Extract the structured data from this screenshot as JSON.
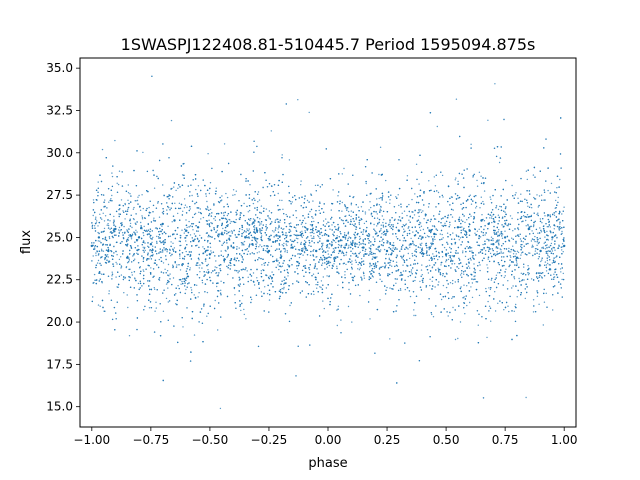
{
  "chart_data": {
    "type": "scatter",
    "title": "1SWASPJ122408.81-510445.7 Period 1595094.875s",
    "xlabel": "phase",
    "ylabel": "flux",
    "xlim": [
      -1.05,
      1.05
    ],
    "ylim": [
      13.8,
      35.6
    ],
    "x_ticks": [
      -1.0,
      -0.75,
      -0.5,
      -0.25,
      0.0,
      0.25,
      0.5,
      0.75,
      1.0
    ],
    "x_tick_labels": [
      "−1.00",
      "−0.75",
      "−0.50",
      "−0.25",
      "0.00",
      "0.25",
      "0.50",
      "0.75",
      "1.00"
    ],
    "y_ticks": [
      15.0,
      17.5,
      20.0,
      22.5,
      25.0,
      27.5,
      30.0,
      32.5,
      35.0
    ],
    "y_tick_labels": [
      "15.0",
      "17.5",
      "20.0",
      "22.5",
      "25.0",
      "27.5",
      "30.0",
      "32.5",
      "35.0"
    ],
    "grid": false,
    "legend": "none",
    "point_color": "#1f77b4",
    "series": [
      {
        "phase_range": [
          -1.0,
          1.0
        ],
        "flux_median": 24.6,
        "flux_core_band": [
          22.0,
          27.5
        ],
        "flux_outlier_range": [
          14.8,
          34.8
        ],
        "mirror_symmetric_about_phase": 0.0,
        "x": [
          -1.0,
          -0.97,
          -0.93,
          -0.9,
          -0.85,
          -0.8,
          -0.75,
          -0.7,
          -0.65,
          -0.6,
          -0.57,
          -0.55,
          -0.5,
          -0.45,
          -0.4,
          -0.35,
          -0.32,
          -0.3,
          -0.25,
          -0.2,
          -0.15,
          -0.1,
          -0.05,
          0.0,
          0.05,
          0.1,
          0.15,
          0.2,
          0.25,
          0.3,
          0.35,
          0.4,
          0.43,
          0.45,
          0.5,
          0.55,
          0.6,
          0.65,
          0.68,
          0.7,
          0.75,
          0.8,
          0.85,
          0.9,
          0.95,
          1.0
        ],
        "y": [
          24.5,
          25.0,
          24.2,
          25.5,
          23.8,
          25.0,
          24.6,
          25.8,
          26.0,
          25.4,
          24.8,
          25.6,
          24.0,
          25.2,
          24.4,
          25.0,
          24.6,
          25.4,
          24.2,
          23.8,
          24.4,
          24.6,
          24.2,
          24.8,
          24.2,
          24.6,
          24.4,
          23.8,
          24.2,
          25.4,
          24.6,
          25.0,
          24.4,
          25.2,
          24.0,
          25.6,
          25.4,
          26.0,
          25.8,
          24.6,
          25.0,
          23.8,
          25.5,
          24.2,
          25.0,
          24.5
        ]
      }
    ]
  }
}
